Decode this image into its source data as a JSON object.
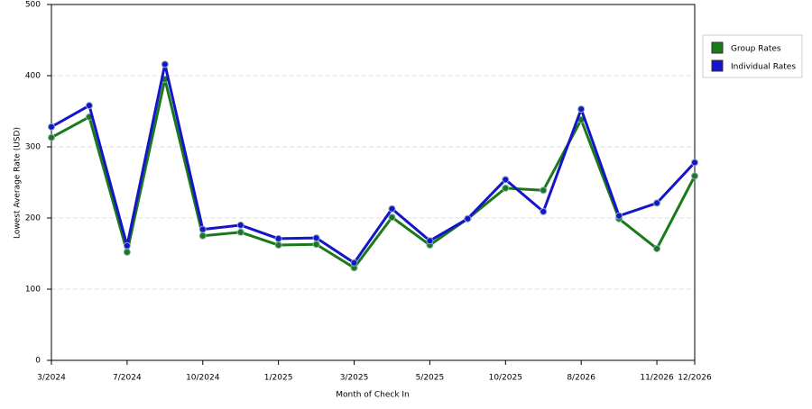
{
  "chart_data": {
    "type": "line",
    "x_label": "Month of Check In",
    "y_label": "Lowest Average Rate (USD)",
    "categories": [
      "3/2024",
      null,
      "7/2024",
      null,
      "10/2024",
      null,
      "1/2025",
      null,
      "3/2025",
      null,
      "5/2025",
      null,
      "10/2025",
      null,
      "8/2026",
      null,
      "11/2026",
      "12/2026"
    ],
    "series": [
      {
        "name": "Group Rates",
        "color": "#1a7a1a",
        "values": [
          313,
          342,
          152,
          395,
          175,
          180,
          162,
          163,
          130,
          201,
          162,
          199,
          242,
          239,
          338,
          199,
          157,
          259
        ]
      },
      {
        "name": "Individual Rates",
        "color": "#1414c8",
        "values": [
          328,
          358,
          161,
          416,
          184,
          190,
          171,
          172,
          137,
          213,
          168,
          199,
          254,
          209,
          353,
          203,
          221,
          278
        ]
      }
    ],
    "ylim": [
      0,
      500
    ],
    "yticks": [
      0,
      100,
      200,
      300,
      400,
      500
    ],
    "grid": true,
    "legend": "right"
  }
}
